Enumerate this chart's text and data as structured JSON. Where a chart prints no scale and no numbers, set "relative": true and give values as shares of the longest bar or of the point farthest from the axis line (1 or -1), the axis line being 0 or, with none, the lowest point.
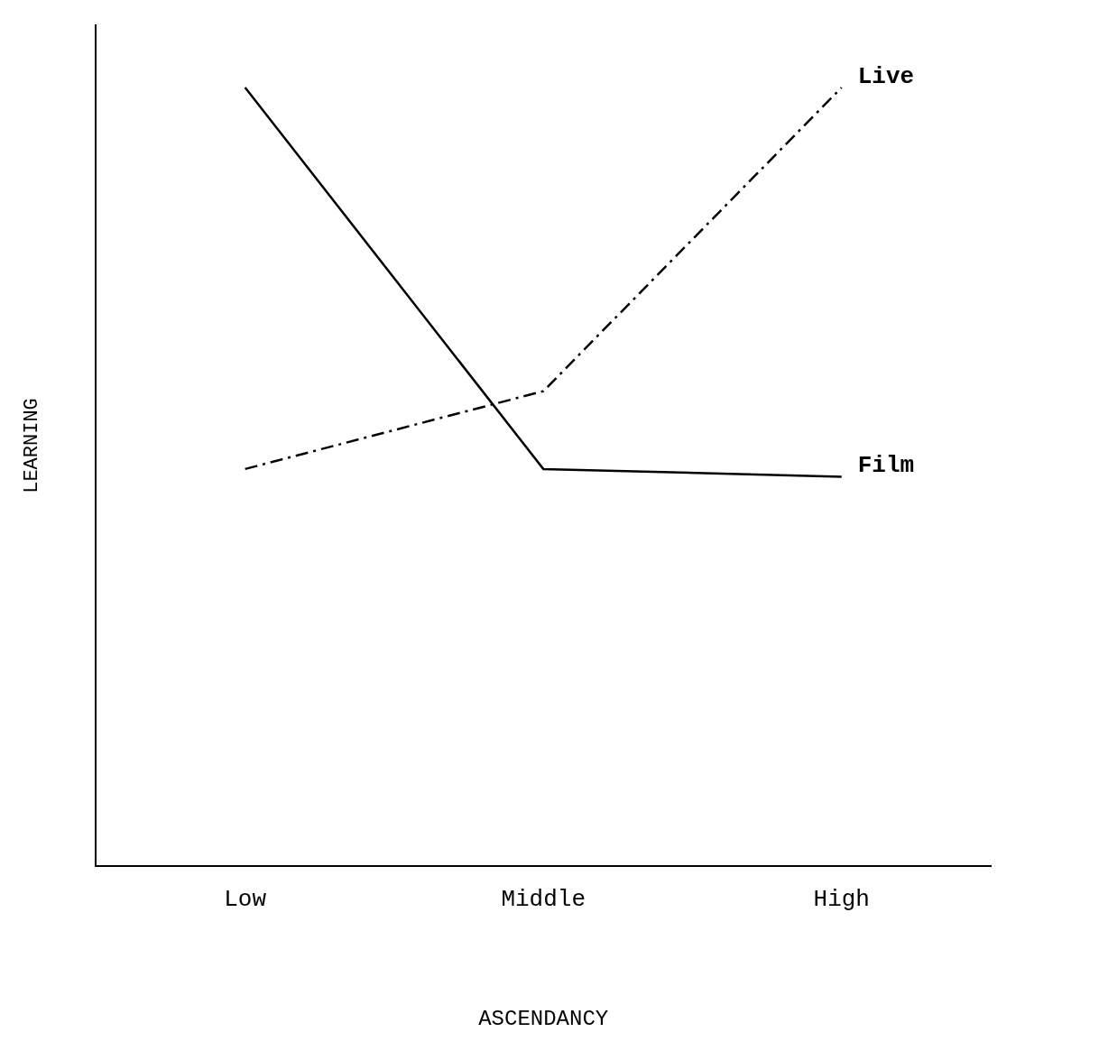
{
  "chart_data": {
    "type": "line",
    "relative": true,
    "xlabel": "ASCENDANCY",
    "ylabel": "LEARNING",
    "categories": [
      "Low",
      "Middle",
      "High"
    ],
    "legend": false,
    "grid": false,
    "marker": "none",
    "series": [
      {
        "name": "Live",
        "color": "#000000",
        "line_style": "dashed",
        "values": [
          0.51,
          0.61,
          1
        ]
      },
      {
        "name": "Film",
        "color": "#000000",
        "line_style": "solid",
        "values": [
          1,
          0.51,
          0.5
        ]
      }
    ]
  }
}
